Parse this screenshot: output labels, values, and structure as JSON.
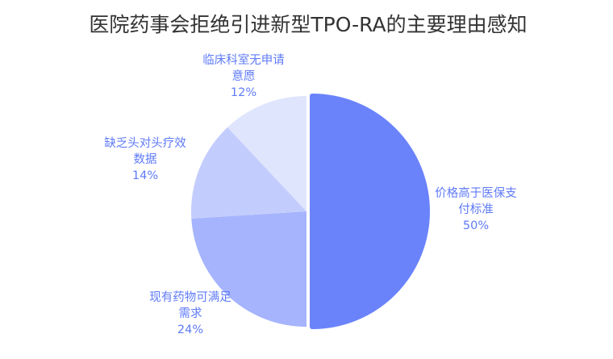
{
  "chart_data": {
    "type": "pie",
    "title": "医院药事会拒绝引进新型TPO-RA的主要理由感知",
    "categories": [
      "价格高于医保支付标准",
      "现有药物可满足需求",
      "缺乏头对头疗效数据",
      "临床科室无申请意愿"
    ],
    "values": [
      50,
      24,
      14,
      12
    ],
    "label_texts": [
      "50%",
      "24%",
      "14%",
      "12%"
    ],
    "label_lines": [
      [
        "价格高于医保支",
        "付标准"
      ],
      [
        "现有药物可满足",
        "需求"
      ],
      [
        "缺乏头对头疗效",
        "数据"
      ],
      [
        "临床科室无申请",
        "意愿"
      ]
    ],
    "colors": [
      "#6a83fb",
      "#a5b4fc",
      "#c3cdfd",
      "#e0e5fe"
    ],
    "label_color": "#5f7bf7",
    "start_angle_deg": 0,
    "direction": "clockwise",
    "legend": "none"
  }
}
